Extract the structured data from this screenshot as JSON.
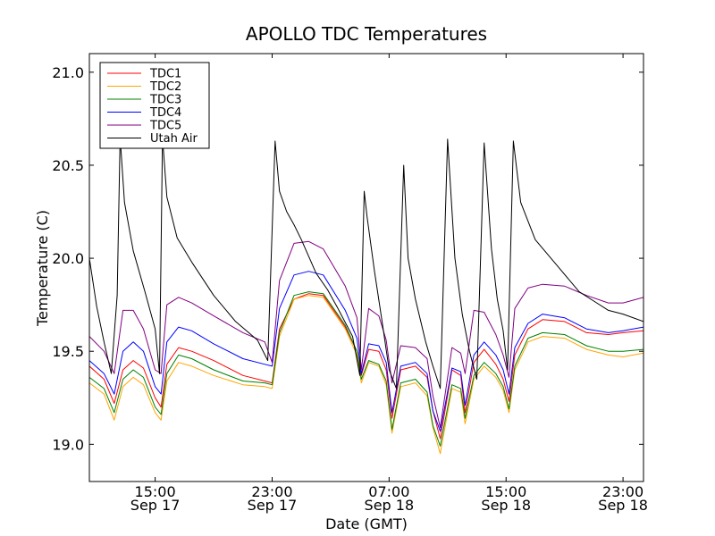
{
  "chart_data": {
    "type": "line",
    "title": "APOLLO TDC Temperatures",
    "xlabel": "Date (GMT)",
    "ylabel": "Temperature (C)",
    "ylim": [
      18.8,
      21.1
    ],
    "xlim_hours": [
      10.5,
      48.4
    ],
    "yticks": [
      19.0,
      19.5,
      20.0,
      20.5,
      21.0
    ],
    "ytick_labels": [
      "19.0",
      "19.5",
      "20.0",
      "20.5",
      "21.0"
    ],
    "xticks": [
      {
        "hour": 15,
        "time": "15:00",
        "date": "Sep 17"
      },
      {
        "hour": 23,
        "time": "23:00",
        "date": "Sep 17"
      },
      {
        "hour": 31,
        "time": "07:00",
        "date": "Sep 18"
      },
      {
        "hour": 39,
        "time": "15:00",
        "date": "Sep 18"
      },
      {
        "hour": 47,
        "time": "23:00",
        "date": "Sep 18"
      }
    ],
    "legend_position": "top-left",
    "x_unit": "hours since Sep 17 00:00 GMT",
    "series": [
      {
        "name": "TDC1",
        "color": "#ff0000",
        "x": [
          10.5,
          11.5,
          12.2,
          12.8,
          13.5,
          14.2,
          15.0,
          15.4,
          15.8,
          16.6,
          17.5,
          19.0,
          21.0,
          22.5,
          23.0,
          23.5,
          24.5,
          25.5,
          26.5,
          28.0,
          28.8,
          29.1,
          29.6,
          30.3,
          30.8,
          31.2,
          31.8,
          32.8,
          33.6,
          34.0,
          34.5,
          35.3,
          35.9,
          36.2,
          36.8,
          37.5,
          38.3,
          38.8,
          39.2,
          39.6,
          40.5,
          41.5,
          43.0,
          44.5,
          46.0,
          47.0,
          48.4
        ],
        "y": [
          19.42,
          19.35,
          19.22,
          19.4,
          19.45,
          19.41,
          19.25,
          19.2,
          19.43,
          19.52,
          19.5,
          19.45,
          19.37,
          19.34,
          19.33,
          19.62,
          19.78,
          19.81,
          19.8,
          19.63,
          19.5,
          19.37,
          19.51,
          19.5,
          19.4,
          19.14,
          19.4,
          19.42,
          19.36,
          19.18,
          19.03,
          19.4,
          19.37,
          19.17,
          19.44,
          19.51,
          19.43,
          19.35,
          19.23,
          19.48,
          19.62,
          19.67,
          19.66,
          19.6,
          19.59,
          19.6,
          19.61
        ]
      },
      {
        "name": "TDC2",
        "color": "#ffa500",
        "x": [
          10.5,
          11.5,
          12.2,
          12.8,
          13.5,
          14.2,
          15.0,
          15.4,
          15.8,
          16.6,
          17.5,
          19.0,
          21.0,
          22.5,
          23.0,
          23.5,
          24.5,
          25.5,
          26.5,
          28.0,
          28.8,
          29.1,
          29.6,
          30.3,
          30.8,
          31.2,
          31.8,
          32.8,
          33.6,
          34.0,
          34.5,
          35.3,
          35.9,
          36.2,
          36.8,
          37.5,
          38.3,
          38.8,
          39.2,
          39.6,
          40.5,
          41.5,
          43.0,
          44.5,
          46.0,
          47.0,
          48.4
        ],
        "y": [
          19.33,
          19.27,
          19.13,
          19.31,
          19.36,
          19.32,
          19.17,
          19.13,
          19.34,
          19.44,
          19.42,
          19.37,
          19.32,
          19.31,
          19.3,
          19.58,
          19.78,
          19.8,
          19.79,
          19.62,
          19.48,
          19.33,
          19.44,
          19.42,
          19.32,
          19.06,
          19.31,
          19.33,
          19.26,
          19.09,
          18.95,
          19.3,
          19.28,
          19.11,
          19.35,
          19.42,
          19.36,
          19.29,
          19.17,
          19.4,
          19.55,
          19.58,
          19.57,
          19.51,
          19.48,
          19.47,
          19.49
        ]
      },
      {
        "name": "TDC3",
        "color": "#008000",
        "x": [
          10.5,
          11.5,
          12.2,
          12.8,
          13.5,
          14.2,
          15.0,
          15.4,
          15.8,
          16.6,
          17.5,
          19.0,
          21.0,
          22.5,
          23.0,
          23.5,
          24.5,
          25.5,
          26.5,
          28.0,
          28.8,
          29.1,
          29.6,
          30.3,
          30.8,
          31.2,
          31.8,
          32.8,
          33.6,
          34.0,
          34.5,
          35.3,
          35.9,
          36.2,
          36.8,
          37.5,
          38.3,
          38.8,
          39.2,
          39.6,
          40.5,
          41.5,
          43.0,
          44.5,
          46.0,
          47.0,
          48.4
        ],
        "y": [
          19.36,
          19.3,
          19.17,
          19.35,
          19.4,
          19.36,
          19.2,
          19.16,
          19.38,
          19.48,
          19.46,
          19.4,
          19.34,
          19.33,
          19.32,
          19.6,
          19.8,
          19.82,
          19.81,
          19.64,
          19.5,
          19.35,
          19.45,
          19.43,
          19.34,
          19.08,
          19.33,
          19.35,
          19.28,
          19.1,
          18.99,
          19.32,
          19.3,
          19.14,
          19.37,
          19.44,
          19.38,
          19.31,
          19.19,
          19.42,
          19.57,
          19.6,
          19.59,
          19.53,
          19.5,
          19.5,
          19.51
        ]
      },
      {
        "name": "TDC4",
        "color": "#0000ff",
        "x": [
          10.5,
          11.5,
          12.2,
          12.8,
          13.5,
          14.2,
          15.0,
          15.4,
          15.8,
          16.6,
          17.5,
          19.0,
          21.0,
          22.5,
          23.0,
          23.5,
          24.5,
          25.5,
          26.5,
          28.0,
          28.8,
          29.1,
          29.6,
          30.3,
          30.8,
          31.2,
          31.8,
          32.8,
          33.6,
          34.0,
          34.5,
          35.3,
          35.9,
          36.2,
          36.8,
          37.5,
          38.3,
          38.8,
          39.2,
          39.6,
          40.5,
          41.5,
          43.0,
          44.5,
          46.0,
          47.0,
          48.4
        ],
        "y": [
          19.45,
          19.38,
          19.27,
          19.5,
          19.55,
          19.5,
          19.31,
          19.27,
          19.55,
          19.63,
          19.61,
          19.54,
          19.46,
          19.43,
          19.42,
          19.73,
          19.91,
          19.93,
          19.91,
          19.72,
          19.57,
          19.38,
          19.54,
          19.53,
          19.44,
          19.17,
          19.42,
          19.44,
          19.38,
          19.18,
          19.07,
          19.41,
          19.39,
          19.21,
          19.48,
          19.55,
          19.48,
          19.4,
          19.27,
          19.52,
          19.65,
          19.7,
          19.68,
          19.62,
          19.6,
          19.61,
          19.63
        ]
      },
      {
        "name": "TDC5",
        "color": "#800080",
        "x": [
          10.5,
          11.5,
          12.2,
          12.8,
          13.5,
          14.2,
          15.0,
          15.4,
          15.8,
          16.6,
          17.5,
          19.0,
          21.0,
          22.5,
          23.0,
          23.5,
          24.5,
          25.5,
          26.5,
          28.0,
          28.8,
          29.1,
          29.6,
          30.3,
          30.8,
          31.2,
          31.8,
          32.8,
          33.6,
          34.0,
          34.5,
          35.3,
          35.9,
          36.2,
          36.8,
          37.5,
          38.3,
          38.8,
          39.2,
          39.6,
          40.5,
          41.5,
          43.0,
          44.5,
          46.0,
          47.0,
          48.4
        ],
        "y": [
          19.58,
          19.5,
          19.38,
          19.72,
          19.72,
          19.62,
          19.4,
          19.38,
          19.75,
          19.79,
          19.76,
          19.69,
          19.6,
          19.55,
          19.44,
          19.88,
          20.08,
          20.09,
          20.05,
          19.85,
          19.68,
          19.4,
          19.73,
          19.69,
          19.56,
          19.33,
          19.53,
          19.52,
          19.46,
          19.26,
          19.09,
          19.52,
          19.49,
          19.38,
          19.72,
          19.71,
          19.59,
          19.48,
          19.36,
          19.73,
          19.84,
          19.86,
          19.85,
          19.8,
          19.76,
          19.76,
          19.79
        ]
      },
      {
        "name": "Utah Air",
        "color": "#000000",
        "x": [
          10.5,
          11.0,
          11.5,
          12.0,
          12.4,
          12.6,
          12.9,
          13.5,
          14.3,
          15.0,
          15.3,
          15.5,
          15.8,
          16.5,
          17.5,
          19.0,
          20.5,
          22.0,
          22.7,
          23.2,
          23.5,
          24.0,
          24.5,
          25.0,
          26.0,
          26.8,
          27.5,
          28.5,
          29.0,
          29.3,
          29.5,
          30.0,
          30.5,
          31.0,
          31.5,
          32.0,
          32.3,
          32.8,
          33.5,
          34.0,
          34.5,
          35.0,
          35.5,
          36.0,
          36.5,
          37.0,
          37.5,
          38.0,
          38.4,
          38.8,
          39.1,
          39.5,
          40.0,
          41.0,
          42.5,
          44.0,
          45.0,
          46.0,
          47.0,
          48.4
        ],
        "y": [
          20.0,
          19.74,
          19.55,
          19.38,
          19.8,
          20.65,
          20.3,
          20.04,
          19.82,
          19.62,
          19.38,
          20.65,
          20.33,
          20.11,
          19.98,
          19.8,
          19.66,
          19.56,
          19.45,
          20.63,
          20.36,
          20.25,
          20.18,
          20.1,
          19.92,
          19.83,
          19.73,
          19.58,
          19.37,
          20.36,
          20.22,
          19.93,
          19.67,
          19.4,
          19.3,
          20.5,
          20.0,
          19.78,
          19.55,
          19.42,
          19.3,
          20.64,
          20.0,
          19.7,
          19.5,
          19.35,
          20.62,
          20.05,
          19.78,
          19.61,
          19.4,
          20.63,
          20.3,
          20.1,
          19.96,
          19.82,
          19.77,
          19.72,
          19.7,
          19.66
        ]
      }
    ]
  }
}
